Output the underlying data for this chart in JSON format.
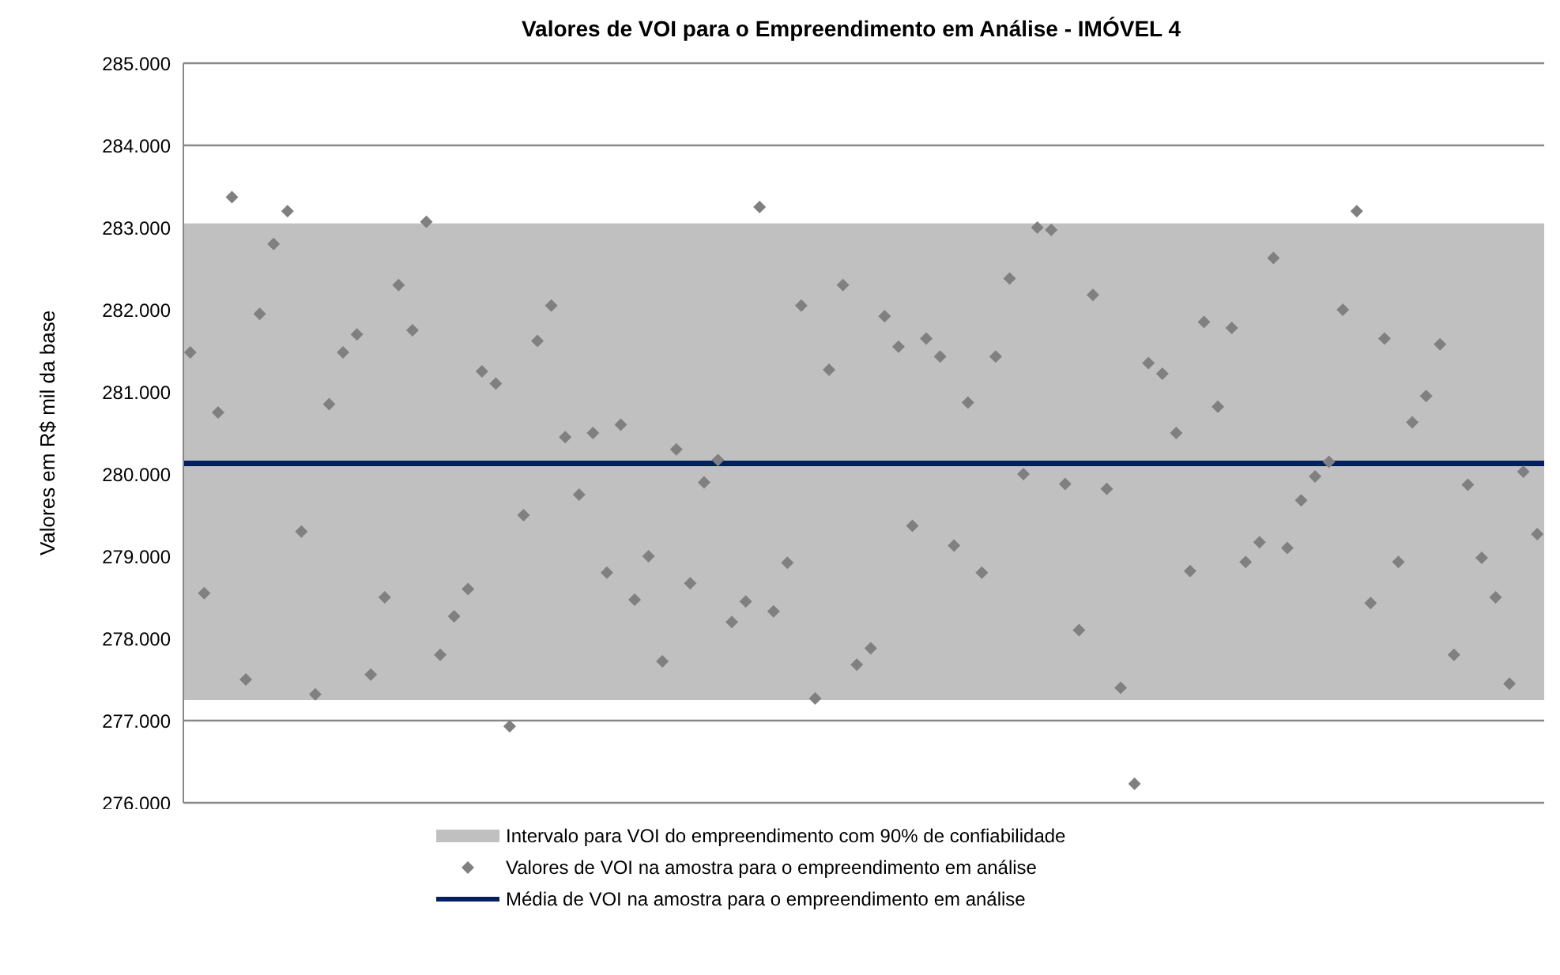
{
  "chart_data": {
    "type": "scatter",
    "title": "Valores de VOI para o Empreendimento em Análise  - IMÓVEL 4",
    "ylabel": "Valores em R$ mil da base",
    "categories": [
      null,
      null,
      null,
      null,
      null,
      null,
      null,
      null,
      null,
      null,
      null,
      null,
      null,
      null,
      null,
      null,
      null,
      null,
      null,
      null,
      null,
      null,
      null,
      null,
      null,
      null,
      null,
      null,
      null,
      null,
      null,
      null,
      null,
      null,
      null,
      null,
      null,
      null,
      null,
      null,
      null,
      null,
      null,
      null,
      null,
      null,
      null,
      null,
      null,
      null,
      null,
      null,
      null,
      null,
      null,
      null,
      null,
      null,
      null,
      null,
      null,
      null,
      null,
      null,
      null,
      null,
      null,
      null,
      null,
      null,
      null,
      null,
      null,
      null,
      null,
      null,
      null,
      null,
      null,
      null,
      null,
      null,
      null,
      null,
      null,
      null,
      null,
      null,
      null,
      null,
      null,
      null,
      null,
      null,
      null,
      null,
      null,
      null
    ],
    "series": [
      {
        "name": "Valores de VOI na amostra para o empreendimento em análise",
        "color": "#808080",
        "values": [
          281480,
          278550,
          280750,
          283370,
          277500,
          281950,
          282800,
          283200,
          279300,
          277320,
          280850,
          281480,
          281700,
          277560,
          278500,
          282300,
          281750,
          283070,
          277800,
          278270,
          278600,
          281250,
          281100,
          276930,
          279500,
          281620,
          282050,
          280450,
          279750,
          280500,
          278800,
          280600,
          278470,
          279000,
          277720,
          280300,
          278670,
          279900,
          280170,
          278200,
          278450,
          283250,
          278330,
          278920,
          282050,
          277270,
          281270,
          282300,
          277680,
          277880,
          281920,
          281550,
          279370,
          281650,
          281430,
          279130,
          280870,
          278800,
          281430,
          282380,
          280000,
          283000,
          282970,
          279880,
          278100,
          282180,
          279820,
          277400,
          276230,
          281350,
          281220,
          280500,
          278820,
          281850,
          280820,
          281780,
          278930,
          279170,
          282630,
          279100,
          279680,
          279970,
          280150,
          282000,
          283200,
          278430,
          281650,
          278930,
          280630,
          280950,
          281580,
          277800,
          279870,
          278980,
          278500,
          277450,
          280030,
          279270
        ]
      }
    ],
    "marker": "diamond",
    "bands": [
      {
        "axis": "y",
        "from": 277250,
        "to": 283050,
        "label": "Intervalo para VOI do empreendimento com 90% de confiabilidade",
        "color": "#c0c0c0"
      }
    ],
    "ref_lines": [
      {
        "axis": "y",
        "value": 280130,
        "label": "Média de VOI na amostra para o empreendimento em análise",
        "color": "#002060",
        "line_style": "solid"
      }
    ],
    "ylim": [
      276000,
      285000
    ],
    "yticks": [
      {
        "value": 276000,
        "label": "276.000"
      },
      {
        "value": 277000,
        "label": "277.000"
      },
      {
        "value": 278000,
        "label": "278.000"
      },
      {
        "value": 279000,
        "label": "279.000"
      },
      {
        "value": 280000,
        "label": "280.000"
      },
      {
        "value": 281000,
        "label": "281.000"
      },
      {
        "value": 282000,
        "label": "282.000"
      },
      {
        "value": 283000,
        "label": "283.000"
      },
      {
        "value": 284000,
        "label": "284.000"
      },
      {
        "value": 285000,
        "label": "285.000"
      }
    ],
    "grid": "y",
    "legend": "bottom"
  }
}
